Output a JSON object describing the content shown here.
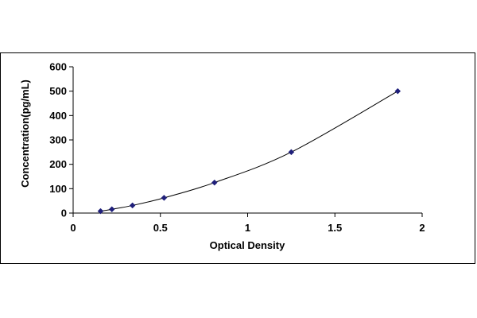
{
  "chart_data": {
    "type": "scatter",
    "title": "",
    "xlabel": "Optical Density",
    "ylabel": "Concentration(pg/mL)",
    "xlim": [
      0,
      2
    ],
    "ylim": [
      0,
      600
    ],
    "x_ticks": [
      0,
      0.5,
      1,
      1.5,
      2
    ],
    "x_tick_labels": [
      "0",
      "0.5",
      "1",
      "1.5",
      "2"
    ],
    "y_ticks": [
      0,
      100,
      200,
      300,
      400,
      500,
      600
    ],
    "y_tick_labels": [
      "0",
      "100",
      "200",
      "300",
      "400",
      "500",
      "600"
    ],
    "grid": false,
    "legend": "none",
    "series": [
      {
        "x": [
          0.157,
          0.222,
          0.34,
          0.521,
          0.81,
          1.25,
          1.86
        ],
        "y": [
          7.8,
          15.6,
          31.2,
          62.5,
          125,
          250,
          500
        ],
        "marker": "diamond",
        "trendline": "smooth curve",
        "color": "#1f1f7a"
      }
    ]
  }
}
